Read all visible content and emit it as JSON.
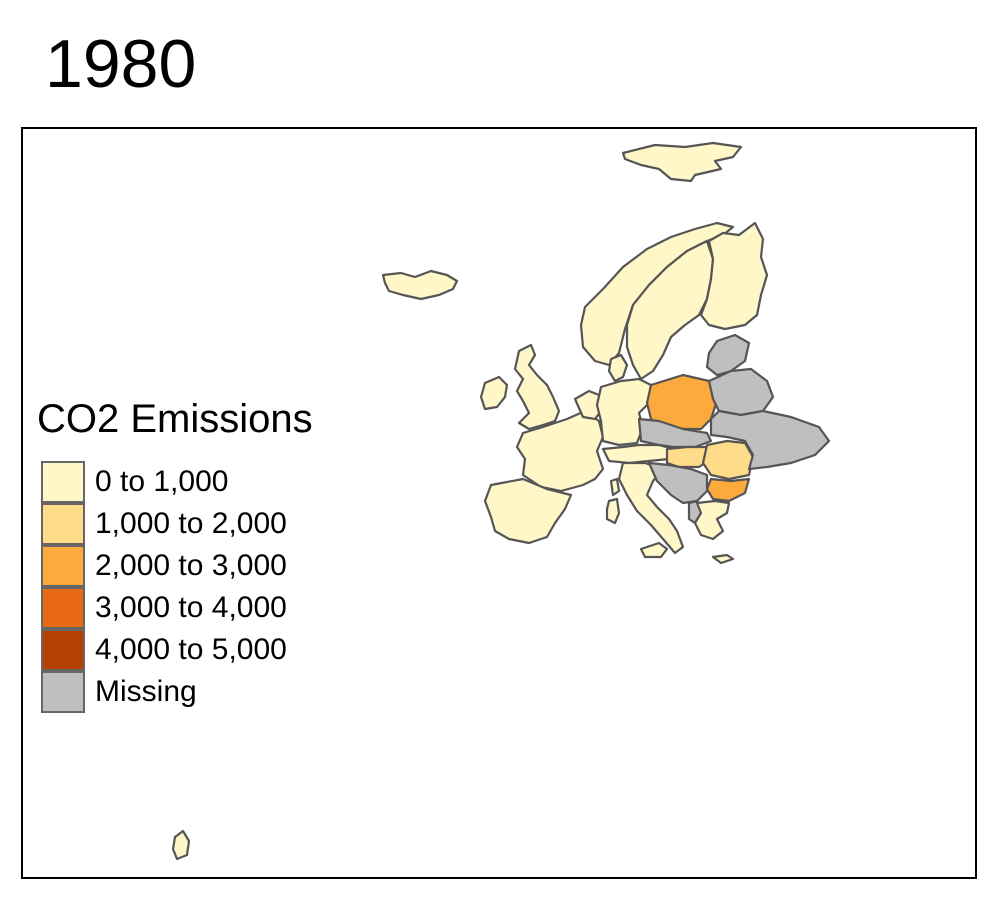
{
  "map": {
    "year": "1980",
    "legend": {
      "title": "CO2 Emissions",
      "items": [
        {
          "label": "0 to 1,000",
          "color": "#fff7c8"
        },
        {
          "label": "1,000 to 2,000",
          "color": "#fedc8a"
        },
        {
          "label": "2,000 to 3,000",
          "color": "#fdaa3c"
        },
        {
          "label": "3,000 to 4,000",
          "color": "#e96a14"
        },
        {
          "label": "4,000 to 5,000",
          "color": "#b64002"
        },
        {
          "label": "Missing",
          "color": "#bfbfbf"
        }
      ]
    },
    "regions": [
      {
        "name": "svalbard",
        "class": "0 to 1,000"
      },
      {
        "name": "iceland",
        "class": "0 to 1,000"
      },
      {
        "name": "norway",
        "class": "0 to 1,000"
      },
      {
        "name": "sweden",
        "class": "0 to 1,000"
      },
      {
        "name": "finland",
        "class": "0 to 1,000"
      },
      {
        "name": "great-britain",
        "class": "0 to 1,000"
      },
      {
        "name": "ireland",
        "class": "0 to 1,000"
      },
      {
        "name": "france",
        "class": "0 to 1,000"
      },
      {
        "name": "spain",
        "class": "0 to 1,000"
      },
      {
        "name": "portugal",
        "class": "0 to 1,000"
      },
      {
        "name": "germany",
        "class": "0 to 1,000"
      },
      {
        "name": "benelux",
        "class": "0 to 1,000"
      },
      {
        "name": "denmark",
        "class": "0 to 1,000"
      },
      {
        "name": "switzerland-austria",
        "class": "0 to 1,000"
      },
      {
        "name": "italy",
        "class": "0 to 1,000"
      },
      {
        "name": "sardinia",
        "class": "0 to 1,000"
      },
      {
        "name": "corsica",
        "class": "0 to 1,000"
      },
      {
        "name": "sicily",
        "class": "0 to 1,000"
      },
      {
        "name": "greece",
        "class": "0 to 1,000"
      },
      {
        "name": "crete",
        "class": "0 to 1,000"
      },
      {
        "name": "canary-islands",
        "class": "0 to 1,000"
      },
      {
        "name": "poland",
        "class": "2,000 to 3,000"
      },
      {
        "name": "hungary",
        "class": "1,000 to 2,000"
      },
      {
        "name": "romania",
        "class": "1,000 to 2,000"
      },
      {
        "name": "bulgaria",
        "class": "2,000 to 3,000"
      },
      {
        "name": "czechoslovakia",
        "class": "Missing"
      },
      {
        "name": "yugoslavia",
        "class": "Missing"
      },
      {
        "name": "baltics",
        "class": "Missing"
      },
      {
        "name": "belarus",
        "class": "Missing"
      },
      {
        "name": "ukraine",
        "class": "Missing"
      },
      {
        "name": "albania",
        "class": "Missing"
      }
    ]
  }
}
